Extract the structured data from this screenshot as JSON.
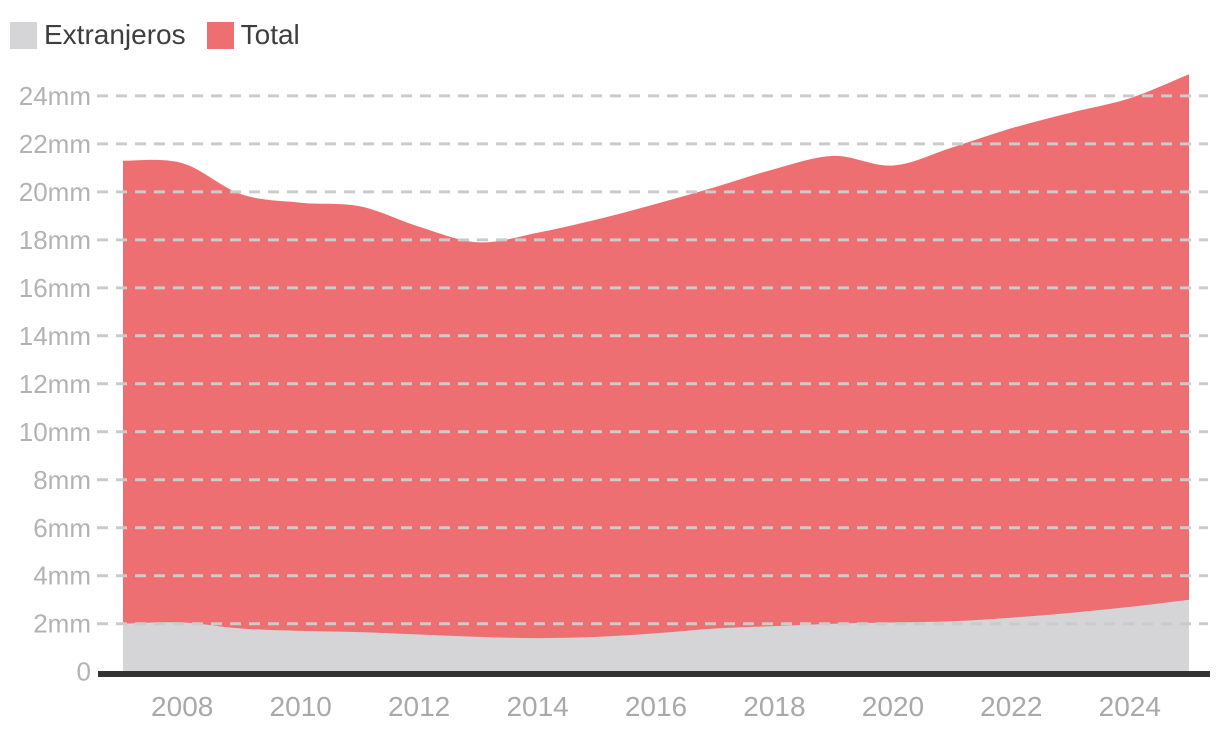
{
  "legend": {
    "items": [
      {
        "label": "Extranjeros",
        "color": "#d5d5d7"
      },
      {
        "label": "Total",
        "color": "#ed6f71"
      }
    ]
  },
  "chart_data": {
    "type": "area",
    "title": "",
    "xlabel": "",
    "ylabel": "",
    "unit": "mm",
    "x": [
      2007,
      2008,
      2009,
      2010,
      2011,
      2012,
      2013,
      2014,
      2015,
      2016,
      2017,
      2018,
      2019,
      2020,
      2021,
      2022,
      2023,
      2024,
      2025
    ],
    "series": [
      {
        "name": "Total",
        "color": "#ed6f71",
        "values": [
          21.3,
          21.2,
          19.9,
          19.55,
          19.4,
          18.55,
          17.9,
          18.3,
          18.85,
          19.5,
          20.2,
          20.95,
          21.5,
          21.1,
          21.85,
          22.65,
          23.3,
          23.9,
          24.9
        ]
      },
      {
        "name": "Extranjeros",
        "color": "#d5d5d7",
        "values": [
          2.0,
          2.05,
          1.8,
          1.7,
          1.65,
          1.55,
          1.45,
          1.4,
          1.45,
          1.6,
          1.8,
          1.9,
          2.0,
          2.05,
          2.1,
          2.25,
          2.45,
          2.7,
          3.0
        ]
      }
    ],
    "y_ticks": [
      {
        "value": 0,
        "label": "0"
      },
      {
        "value": 2,
        "label": "2mm"
      },
      {
        "value": 4,
        "label": "4mm"
      },
      {
        "value": 6,
        "label": "6mm"
      },
      {
        "value": 8,
        "label": "8mm"
      },
      {
        "value": 10,
        "label": "10mm"
      },
      {
        "value": 12,
        "label": "12mm"
      },
      {
        "value": 14,
        "label": "14mm"
      },
      {
        "value": 16,
        "label": "16mm"
      },
      {
        "value": 18,
        "label": "18mm"
      },
      {
        "value": 20,
        "label": "20mm"
      },
      {
        "value": 22,
        "label": "22mm"
      },
      {
        "value": 24,
        "label": "24mm"
      }
    ],
    "x_ticks": [
      {
        "value": 2008,
        "label": "2008"
      },
      {
        "value": 2010,
        "label": "2010"
      },
      {
        "value": 2012,
        "label": "2012"
      },
      {
        "value": 2014,
        "label": "2014"
      },
      {
        "value": 2016,
        "label": "2016"
      },
      {
        "value": 2018,
        "label": "2018"
      },
      {
        "value": 2020,
        "label": "2020"
      },
      {
        "value": 2022,
        "label": "2022"
      },
      {
        "value": 2024,
        "label": "2024"
      }
    ],
    "xlim": [
      2007,
      2025
    ],
    "ylim": [
      0,
      25.2
    ],
    "grid": "horizontal-dashed",
    "curve": "smooth",
    "legend_position": "top-left",
    "colors": {
      "background": "#ffffff",
      "grid": "#cbcbcb",
      "axis_line": "#333333",
      "y_tick_text": "#b3b3b3",
      "x_tick_text": "#a9a9a9",
      "legend_text": "#3e3e3e"
    }
  }
}
